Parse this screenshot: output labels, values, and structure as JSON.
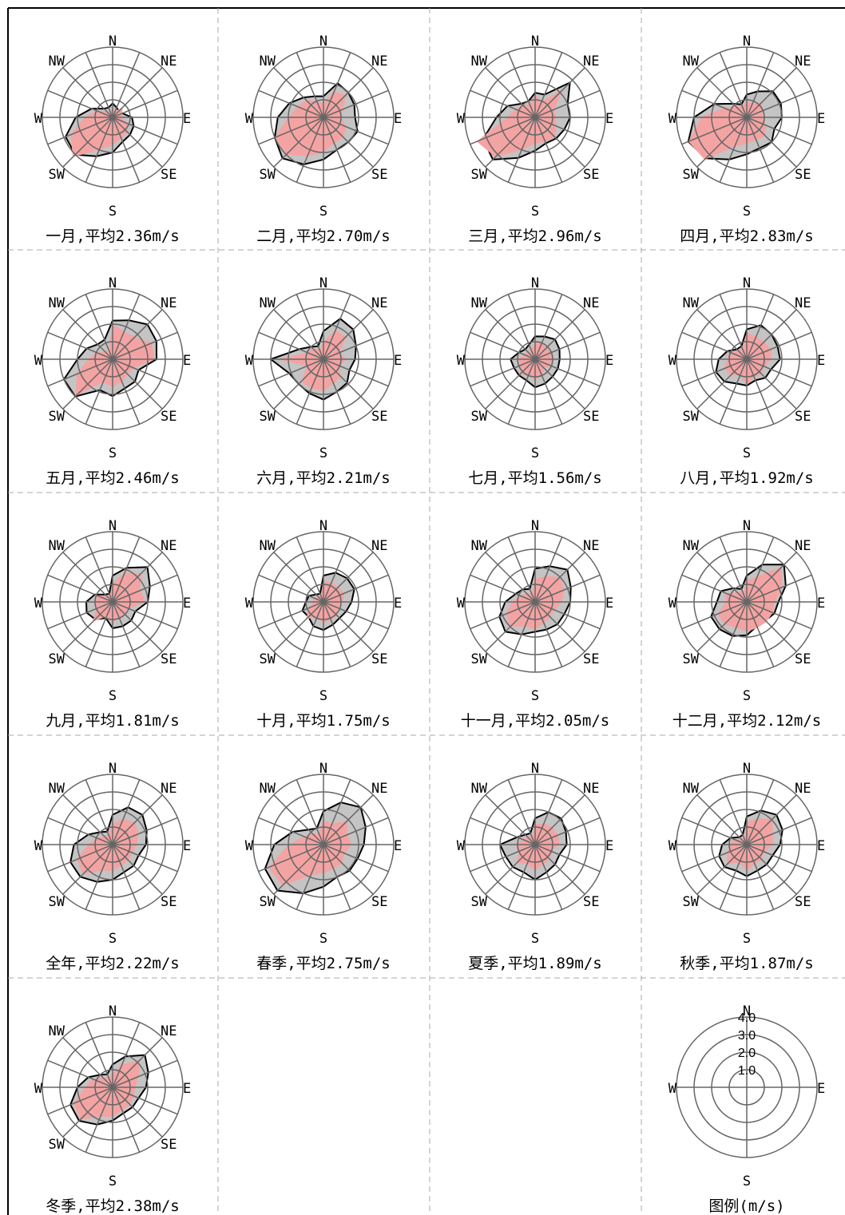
{
  "chart_data": {
    "type": "wind-rose",
    "unit": "m/s",
    "directions": [
      "N",
      "NNE",
      "NE",
      "ENE",
      "E",
      "ESE",
      "SE",
      "SSE",
      "S",
      "SSW",
      "SW",
      "WSW",
      "W",
      "WNW",
      "NW",
      "NNW"
    ],
    "direction_labels": [
      "N",
      "NE",
      "E",
      "SE",
      "S",
      "SW",
      "W",
      "NW"
    ],
    "rmax": 4.0,
    "colors": {
      "speed_fill": "#f4a3a3",
      "freq_fill": "#c4c4c4",
      "grid": "#666666",
      "outline": "#000000"
    },
    "panels": [
      {
        "caption": "一月,平均2.36m/s",
        "speed": [
          0.5,
          0.4,
          0.8,
          0.6,
          0.5,
          1.0,
          1.2,
          1.3,
          1.6,
          2.0,
          3.2,
          2.6,
          1.6,
          1.0,
          0.5,
          0.4
        ],
        "freq": [
          0.8,
          0.6,
          0.5,
          0.6,
          1.1,
          1.3,
          1.4,
          1.5,
          2.0,
          2.4,
          3.0,
          2.9,
          2.1,
          1.3,
          0.7,
          0.6
        ]
      },
      {
        "caption": "二月,平均2.70m/s",
        "speed": [
          0.8,
          1.6,
          1.8,
          1.2,
          1.0,
          1.4,
          1.6,
          1.6,
          2.0,
          2.4,
          3.0,
          3.0,
          2.0,
          1.6,
          1.4,
          1.0
        ],
        "freq": [
          1.2,
          2.1,
          2.0,
          1.9,
          1.8,
          2.1,
          2.0,
          2.0,
          2.4,
          2.9,
          3.3,
          3.0,
          2.6,
          2.1,
          1.6,
          1.3
        ]
      },
      {
        "caption": "三月,平均2.96m/s",
        "speed": [
          1.3,
          1.0,
          2.2,
          1.2,
          1.2,
          1.3,
          1.6,
          1.5,
          1.5,
          2.0,
          3.2,
          3.6,
          1.6,
          1.2,
          1.0,
          0.8
        ],
        "freq": [
          1.4,
          1.4,
          2.8,
          2.0,
          2.0,
          1.8,
          1.7,
          1.6,
          1.9,
          2.5,
          3.4,
          3.2,
          2.2,
          1.7,
          1.1,
          1.0
        ]
      },
      {
        "caption": "四月,平均2.83m/s",
        "speed": [
          0.9,
          0.9,
          1.2,
          1.0,
          0.9,
          1.2,
          1.5,
          1.4,
          1.5,
          1.8,
          3.4,
          3.6,
          2.6,
          1.4,
          0.9,
          0.7
        ],
        "freq": [
          1.3,
          1.6,
          2.1,
          2.1,
          2.0,
          1.7,
          2.0,
          1.9,
          2.1,
          2.6,
          3.3,
          3.6,
          3.0,
          2.0,
          1.1,
          0.8
        ]
      },
      {
        "caption": "五月,平均2.46m/s",
        "speed": [
          2.0,
          1.7,
          1.8,
          2.4,
          2.4,
          1.3,
          1.2,
          1.4,
          1.6,
          1.4,
          3.0,
          2.2,
          1.4,
          1.0,
          0.6,
          0.6
        ],
        "freq": [
          2.2,
          2.4,
          2.8,
          2.7,
          2.5,
          1.6,
          1.8,
          1.8,
          2.1,
          1.9,
          3.0,
          3.0,
          2.0,
          1.6,
          1.2,
          1.2
        ]
      },
      {
        "caption": "六月,平均2.21m/s",
        "speed": [
          1.0,
          1.8,
          1.8,
          1.0,
          1.3,
          1.0,
          1.4,
          1.5,
          1.8,
          1.8,
          1.8,
          1.0,
          2.6,
          1.0,
          0.9,
          0.6
        ],
        "freq": [
          1.6,
          2.5,
          2.4,
          2.0,
          1.8,
          1.6,
          1.9,
          2.0,
          2.3,
          2.1,
          2.0,
          2.1,
          3.0,
          1.5,
          1.0,
          0.8
        ]
      },
      {
        "caption": "七月,平均1.56m/s",
        "speed": [
          1.0,
          1.0,
          0.9,
          1.0,
          1.0,
          0.9,
          0.8,
          1.0,
          1.2,
          1.0,
          1.2,
          0.9,
          1.0,
          0.7,
          0.6,
          0.6
        ],
        "freq": [
          1.3,
          1.4,
          1.6,
          1.5,
          1.4,
          1.4,
          1.4,
          1.5,
          1.6,
          1.3,
          1.3,
          1.3,
          1.4,
          1.0,
          0.8,
          0.9
        ]
      },
      {
        "caption": "八月,平均1.92m/s",
        "speed": [
          1.5,
          1.4,
          1.4,
          1.5,
          1.4,
          1.1,
          1.2,
          1.1,
          1.5,
          1.0,
          1.3,
          1.4,
          1.1,
          1.1,
          0.7,
          0.7
        ],
        "freq": [
          1.7,
          2.1,
          2.0,
          1.9,
          1.9,
          1.5,
          1.5,
          1.3,
          1.5,
          1.5,
          1.8,
          1.9,
          1.6,
          1.2,
          0.8,
          0.8
        ]
      },
      {
        "caption": "九月,平均1.81m/s",
        "speed": [
          1.1,
          1.8,
          2.3,
          1.7,
          1.9,
          1.0,
          1.0,
          1.0,
          1.2,
          0.9,
          1.6,
          1.0,
          1.1,
          1.0,
          0.5,
          0.4
        ],
        "freq": [
          1.5,
          2.1,
          2.8,
          2.3,
          2.0,
          1.4,
          1.5,
          1.5,
          1.5,
          1.0,
          1.4,
          1.6,
          1.5,
          1.1,
          0.6,
          0.5
        ]
      },
      {
        "caption": "十月,平均1.75m/s",
        "speed": [
          1.2,
          1.2,
          1.2,
          1.3,
          1.1,
          0.9,
          1.1,
          1.1,
          1.2,
          0.9,
          1.4,
          0.9,
          0.6,
          0.6,
          0.4,
          0.4
        ],
        "freq": [
          1.5,
          1.8,
          1.9,
          1.9,
          1.6,
          1.4,
          1.3,
          1.4,
          1.6,
          1.5,
          1.2,
          1.3,
          1.0,
          0.9,
          0.6,
          0.5
        ]
      },
      {
        "caption": "十一月,平均2.05m/s",
        "speed": [
          1.3,
          1.6,
          2.0,
          1.8,
          1.5,
          1.2,
          1.2,
          1.3,
          1.6,
          1.5,
          2.0,
          1.8,
          1.3,
          0.9,
          0.7,
          0.5
        ],
        "freq": [
          1.9,
          2.2,
          2.6,
          2.2,
          2.0,
          1.8,
          1.8,
          1.7,
          1.7,
          2.0,
          2.4,
          2.2,
          1.7,
          1.2,
          1.0,
          0.8
        ]
      },
      {
        "caption": "十二月,平均2.12m/s",
        "speed": [
          1.2,
          1.6,
          2.8,
          2.2,
          1.6,
          1.6,
          1.6,
          1.6,
          1.7,
          1.6,
          1.8,
          1.8,
          1.2,
          1.3,
          0.8,
          0.6
        ],
        "freq": [
          1.5,
          2.3,
          3.0,
          2.4,
          1.8,
          1.7,
          1.5,
          1.5,
          1.9,
          2.1,
          2.2,
          2.2,
          1.7,
          1.6,
          1.1,
          0.8
        ]
      },
      {
        "caption": "全年,平均2.22m/s",
        "speed": [
          1.2,
          1.6,
          1.8,
          1.6,
          1.4,
          1.2,
          1.3,
          1.3,
          1.5,
          1.6,
          2.4,
          2.2,
          1.4,
          1.0,
          0.7,
          0.6
        ],
        "freq": [
          1.7,
          2.3,
          2.4,
          2.1,
          1.9,
          1.6,
          1.7,
          1.7,
          2.0,
          2.3,
          2.6,
          2.6,
          2.2,
          1.5,
          1.0,
          0.8
        ]
      },
      {
        "caption": "春季,平均2.75m/s",
        "speed": [
          1.4,
          1.3,
          1.9,
          1.5,
          1.6,
          1.3,
          1.5,
          1.5,
          1.6,
          1.9,
          3.3,
          3.4,
          2.0,
          1.2,
          0.9,
          0.7
        ],
        "freq": [
          1.9,
          2.6,
          3.0,
          2.6,
          2.3,
          2.1,
          2.1,
          2.0,
          2.4,
          3.0,
          3.7,
          3.6,
          2.8,
          1.9,
          1.2,
          1.0
        ]
      },
      {
        "caption": "夏季,平均1.89m/s",
        "speed": [
          1.2,
          1.3,
          1.4,
          1.4,
          1.4,
          1.0,
          1.2,
          1.2,
          1.5,
          1.2,
          1.5,
          1.0,
          1.1,
          0.8,
          0.6,
          0.5
        ],
        "freq": [
          1.5,
          2.0,
          2.1,
          1.9,
          1.8,
          1.5,
          1.6,
          1.7,
          2.0,
          1.7,
          1.8,
          1.8,
          2.0,
          1.1,
          0.8,
          0.7
        ]
      },
      {
        "caption": "秋季,平均1.87m/s",
        "speed": [
          1.3,
          1.6,
          2.1,
          1.6,
          1.5,
          1.1,
          1.2,
          1.2,
          1.5,
          1.1,
          1.6,
          1.2,
          1.0,
          0.8,
          0.5,
          0.4
        ],
        "freq": [
          1.6,
          2.1,
          2.4,
          2.2,
          1.9,
          1.6,
          1.6,
          1.6,
          1.8,
          1.6,
          1.8,
          1.7,
          1.4,
          1.0,
          0.6,
          0.6
        ]
      },
      {
        "caption": "冬季,平均2.38m/s",
        "speed": [
          0.8,
          1.4,
          2.2,
          1.6,
          1.3,
          1.3,
          1.4,
          1.4,
          1.7,
          1.8,
          2.6,
          2.4,
          1.6,
          1.2,
          0.8,
          0.6
        ],
        "freq": [
          1.3,
          1.9,
          2.6,
          2.2,
          1.9,
          1.6,
          1.6,
          1.6,
          1.9,
          2.3,
          2.7,
          2.6,
          2.0,
          1.5,
          1.0,
          0.8
        ]
      }
    ],
    "legend": {
      "caption": "图例(m/s)",
      "rings": [
        "1.0",
        "2.0",
        "3.0",
        "4.0"
      ],
      "direction_labels": [
        "N",
        "E",
        "S",
        "W"
      ]
    }
  }
}
